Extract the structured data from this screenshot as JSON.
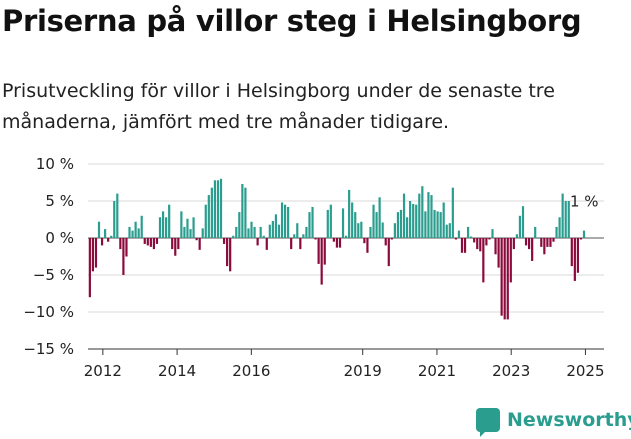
{
  "title": "Priserna på villor steg i Helsingborg",
  "subtitle": "Prisutveckling för villor i Helsingborg under de senaste tre månaderna, jämfört med tre månader tidigare.",
  "brand": {
    "name": "Newsworthy",
    "icon": "newsworthy-logo-icon"
  },
  "colors": {
    "positive": "#2a9d8f",
    "negative": "#8b0a3c",
    "grid": "#d9d9d9",
    "axis": "#333333"
  },
  "chart_data": {
    "type": "bar",
    "title": "Priserna på villor steg i Helsingborg",
    "xlabel": "",
    "ylabel": "",
    "ylim": [
      -15,
      10
    ],
    "yticks": [
      10,
      5,
      0,
      -5,
      -10,
      -15
    ],
    "ytick_labels": [
      "10 %",
      "5 %",
      "0 %",
      "−5 %",
      "−10 %",
      "−15 %"
    ],
    "x_start_year": 2011.6,
    "x_end_year": 2025.5,
    "xticks": [
      2012,
      2014,
      2016,
      2019,
      2021,
      2023,
      2025
    ],
    "xtick_labels": [
      "2012",
      "2014",
      "2016",
      "2019",
      "2021",
      "2023",
      "2025"
    ],
    "grid": true,
    "legend": "none",
    "last_label": "1 %",
    "values": [
      -8,
      -4.5,
      -4,
      2.2,
      -1,
      1.2,
      -0.5,
      0.3,
      5,
      6,
      -1.5,
      -5,
      -2.5,
      1.5,
      1,
      2.2,
      1.3,
      3,
      -0.8,
      -1,
      -1.2,
      -1.5,
      -0.8,
      2.8,
      3.6,
      2.8,
      4.5,
      -1.5,
      -2.4,
      -1.5,
      3.6,
      1.5,
      2.6,
      1.2,
      2.8,
      -0.3,
      -1.6,
      1.3,
      4.5,
      5.8,
      6.8,
      7.8,
      7.8,
      8,
      -0.8,
      -3.8,
      -4.5,
      0.3,
      1.5,
      3.5,
      7.3,
      6.8,
      1.3,
      2.2,
      1.5,
      -1,
      1.5,
      0.3,
      -1.6,
      1.8,
      2.3,
      3.2,
      1.8,
      4.8,
      4.5,
      4.2,
      -1.5,
      0.5,
      2,
      -1.5,
      0.5,
      1.5,
      3.5,
      4.2,
      -0.2,
      -3.5,
      -6.3,
      -3.6,
      3.8,
      4.5,
      -0.5,
      -1.3,
      -1.3,
      4,
      0.3,
      6.5,
      4.8,
      3.5,
      2,
      2.2,
      -0.7,
      -2,
      1.5,
      4.5,
      3.5,
      5.5,
      2.1,
      -1,
      -3.8,
      -0.2,
      2,
      3.5,
      3.8,
      6,
      2.8,
      5,
      4.6,
      4.5,
      6,
      7,
      3.6,
      6.2,
      5.8,
      3.8,
      3.6,
      3.5,
      4.8,
      1.8,
      2,
      6.8,
      -0.2,
      1,
      -2,
      -2,
      1.5,
      0.2,
      -0.6,
      -1.5,
      -1.8,
      -6,
      -1,
      -0.2,
      1.2,
      -2.2,
      -4,
      -10.5,
      -11,
      -11,
      -6,
      -1.5,
      0.5,
      3,
      4.3,
      -1,
      -1.5,
      -3.1,
      1.5,
      0,
      -1.2,
      -2.2,
      -1.2,
      -1.2,
      -0.5,
      1.5,
      2.8,
      6,
      5,
      5,
      -3.8,
      -5.8,
      -4.7,
      -0.2,
      1
    ]
  }
}
